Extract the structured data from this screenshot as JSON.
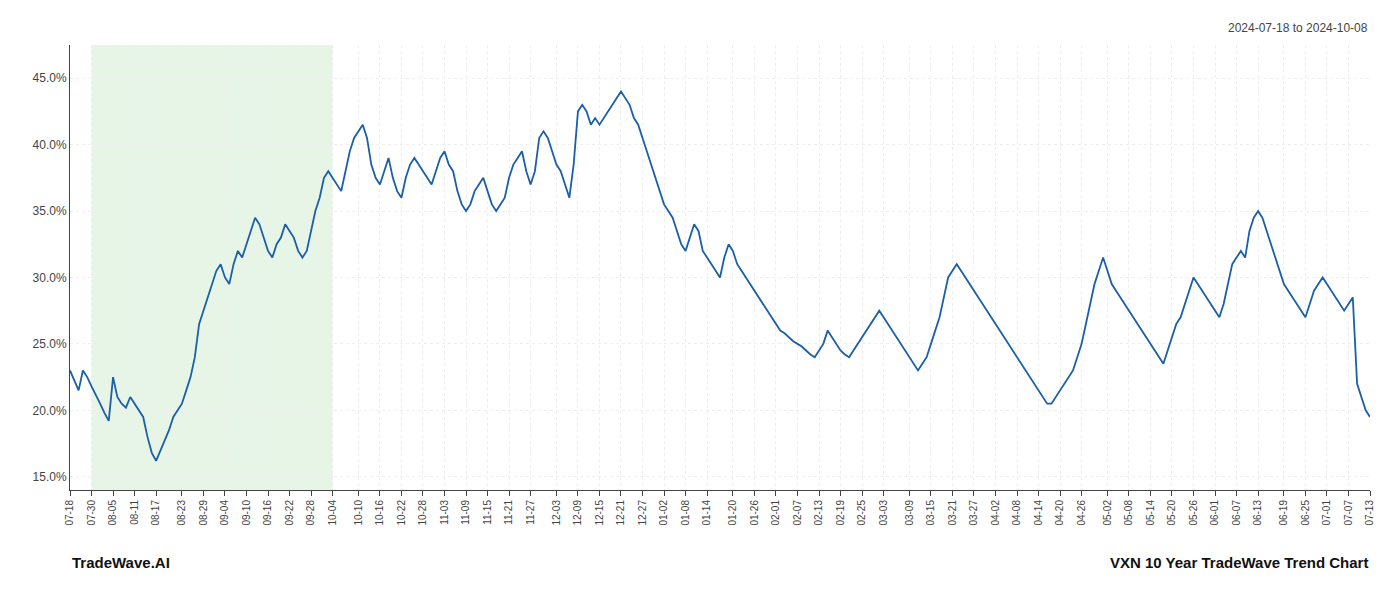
{
  "chart_data": {
    "type": "line",
    "title": "VXN 10 Year TradeWave Trend Chart",
    "subtitle": "2024-07-18 to 2024-10-08",
    "annotations": [
      "TradeWave.AI"
    ],
    "color": "#1a5fa8",
    "grid": true,
    "ylim": [
      14.0,
      47.5
    ],
    "yticks": [
      {
        "value": 15.0,
        "label": "15.0%"
      },
      {
        "value": 20.0,
        "label": "20.0%"
      },
      {
        "value": 25.0,
        "label": "25.0%"
      },
      {
        "value": 30.0,
        "label": "30.0%"
      },
      {
        "value": 35.0,
        "label": "35.0%"
      },
      {
        "value": 40.0,
        "label": "40.0%"
      },
      {
        "value": 45.0,
        "label": "45.0%"
      }
    ],
    "shade": {
      "from": "07-30",
      "to": "10-04",
      "color": "#d4ecd4"
    },
    "categories": [
      "07-18",
      null,
      null,
      null,
      null,
      "07-30",
      null,
      null,
      null,
      null,
      "08-05",
      null,
      null,
      null,
      null,
      "08-11",
      null,
      null,
      null,
      null,
      "08-17",
      null,
      null,
      null,
      null,
      null,
      "08-23",
      null,
      null,
      null,
      null,
      "08-29",
      null,
      null,
      null,
      null,
      "09-04",
      null,
      null,
      null,
      null,
      "09-10",
      null,
      null,
      null,
      null,
      "09-16",
      null,
      null,
      null,
      null,
      "09-22",
      null,
      null,
      null,
      null,
      "09-28",
      null,
      null,
      null,
      null,
      "10-04",
      null,
      null,
      null,
      null,
      null,
      "10-10",
      null,
      null,
      null,
      null,
      "10-16",
      null,
      null,
      null,
      null,
      "10-22",
      null,
      null,
      null,
      null,
      "10-28",
      null,
      null,
      null,
      null,
      "11-03",
      null,
      null,
      null,
      null,
      "11-09",
      null,
      null,
      null,
      null,
      "11-15",
      null,
      null,
      null,
      null,
      "11-21",
      null,
      null,
      null,
      null,
      "11-27",
      null,
      null,
      null,
      null,
      null,
      "12-03",
      null,
      null,
      null,
      null,
      "12-09",
      null,
      null,
      null,
      null,
      "12-15",
      null,
      null,
      null,
      null,
      "12-21",
      null,
      null,
      null,
      null,
      "12-27",
      null,
      null,
      null,
      null,
      "01-02",
      null,
      null,
      null,
      null,
      "01-08",
      null,
      null,
      null,
      null,
      "01-14",
      null,
      null,
      null,
      null,
      null,
      "01-20",
      null,
      null,
      null,
      null,
      "01-26",
      null,
      null,
      null,
      null,
      "02-01",
      null,
      null,
      null,
      null,
      "02-07",
      null,
      null,
      null,
      null,
      "02-13",
      null,
      null,
      null,
      null,
      "02-19",
      null,
      null,
      null,
      null,
      "02-25",
      null,
      null,
      null,
      null,
      "03-03",
      null,
      null,
      null,
      null,
      null,
      "03-09",
      null,
      null,
      null,
      null,
      "03-15",
      null,
      null,
      null,
      null,
      "03-21",
      null,
      null,
      null,
      null,
      "03-27",
      null,
      null,
      null,
      null,
      "04-02",
      null,
      null,
      null,
      null,
      "04-08",
      null,
      null,
      null,
      null,
      "04-14",
      null,
      null,
      null,
      null,
      "04-20",
      null,
      null,
      null,
      null,
      "04-26",
      null,
      null,
      null,
      null,
      null,
      "05-02",
      null,
      null,
      null,
      null,
      "05-08",
      null,
      null,
      null,
      null,
      "05-14",
      null,
      null,
      null,
      null,
      "05-20",
      null,
      null,
      null,
      null,
      "05-26",
      null,
      null,
      null,
      null,
      "06-01",
      null,
      null,
      null,
      null,
      "06-07",
      null,
      null,
      null,
      null,
      "06-13",
      null,
      null,
      null,
      null,
      null,
      "06-19",
      null,
      null,
      null,
      null,
      "06-25",
      null,
      null,
      null,
      null,
      "07-01",
      null,
      null,
      null,
      null,
      "07-07",
      null,
      null,
      null,
      null,
      "07-13"
    ],
    "values": [
      23.0,
      22.2,
      21.5,
      23.0,
      22.5,
      21.8,
      21.2,
      20.5,
      19.8,
      19.2,
      22.5,
      21.0,
      20.5,
      20.2,
      21.0,
      20.5,
      20.0,
      19.5,
      18.0,
      16.8,
      16.2,
      17.0,
      17.8,
      18.5,
      19.5,
      20.0,
      20.5,
      21.5,
      22.5,
      24.0,
      26.5,
      27.5,
      28.5,
      29.5,
      30.5,
      31.0,
      30.0,
      29.5,
      31.0,
      32.0,
      31.5,
      32.5,
      33.5,
      34.5,
      34.0,
      33.0,
      32.0,
      31.5,
      32.5,
      33.0,
      34.0,
      33.5,
      33.0,
      32.0,
      31.5,
      32.0,
      33.5,
      35.0,
      36.0,
      37.5,
      38.0,
      37.5,
      37.0,
      36.5,
      38.0,
      39.5,
      40.5,
      41.0,
      41.5,
      40.5,
      38.5,
      37.5,
      37.0,
      38.0,
      39.0,
      37.5,
      36.5,
      36.0,
      37.5,
      38.5,
      39.0,
      38.5,
      38.0,
      37.5,
      37.0,
      38.0,
      39.0,
      39.5,
      38.5,
      38.0,
      36.5,
      35.5,
      35.0,
      35.5,
      36.5,
      37.0,
      37.5,
      36.5,
      35.5,
      35.0,
      35.5,
      36.0,
      37.5,
      38.5,
      39.0,
      39.5,
      38.0,
      37.0,
      38.0,
      40.5,
      41.0,
      40.5,
      39.5,
      38.5,
      38.0,
      37.0,
      36.0,
      38.5,
      42.5,
      43.0,
      42.5,
      41.5,
      42.0,
      41.5,
      42.0,
      42.5,
      43.0,
      43.5,
      44.0,
      43.5,
      43.0,
      42.0,
      41.5,
      40.5,
      39.5,
      38.5,
      37.5,
      36.5,
      35.5,
      35.0,
      34.5,
      33.5,
      32.5,
      32.0,
      33.0,
      34.0,
      33.5,
      32.0,
      31.5,
      31.0,
      30.5,
      30.0,
      31.5,
      32.5,
      32.0,
      31.0,
      30.5,
      30.0,
      29.5,
      29.0,
      28.5,
      28.0,
      27.5,
      27.0,
      26.5,
      26.0,
      25.8,
      25.5,
      25.2,
      25.0,
      24.8,
      24.5,
      24.2,
      24.0,
      24.5,
      25.0,
      26.0,
      25.5,
      25.0,
      24.5,
      24.2,
      24.0,
      24.5,
      25.0,
      25.5,
      26.0,
      26.5,
      27.0,
      27.5,
      27.0,
      26.5,
      26.0,
      25.5,
      25.0,
      24.5,
      24.0,
      23.5,
      23.0,
      23.5,
      24.0,
      25.0,
      26.0,
      27.0,
      28.5,
      30.0,
      30.5,
      31.0,
      30.5,
      30.0,
      29.5,
      29.0,
      28.5,
      28.0,
      27.5,
      27.0,
      26.5,
      26.0,
      25.5,
      25.0,
      24.5,
      24.0,
      23.5,
      23.0,
      22.5,
      22.0,
      21.5,
      21.0,
      20.5,
      20.5,
      21.0,
      21.5,
      22.0,
      22.5,
      23.0,
      24.0,
      25.0,
      26.5,
      28.0,
      29.5,
      30.5,
      31.5,
      30.5,
      29.5,
      29.0,
      28.5,
      28.0,
      27.5,
      27.0,
      26.5,
      26.0,
      25.5,
      25.0,
      24.5,
      24.0,
      23.5,
      24.5,
      25.5,
      26.5,
      27.0,
      28.0,
      29.0,
      30.0,
      29.5,
      29.0,
      28.5,
      28.0,
      27.5,
      27.0,
      28.0,
      29.5,
      31.0,
      31.5,
      32.0,
      31.5,
      33.5,
      34.5,
      35.0,
      34.5,
      33.5,
      32.5,
      31.5,
      30.5,
      29.5,
      29.0,
      28.5,
      28.0,
      27.5,
      27.0,
      28.0,
      29.0,
      29.5,
      30.0,
      29.5,
      29.0,
      28.5,
      28.0,
      27.5,
      28.0,
      28.5,
      22.0,
      21.0,
      20.0,
      19.5
    ]
  }
}
